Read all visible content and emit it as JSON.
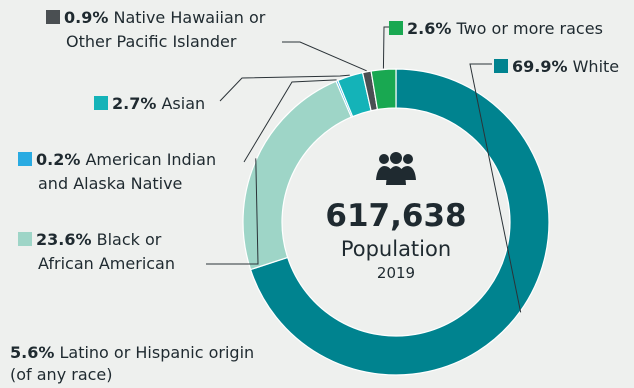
{
  "chart_data": {
    "type": "pie",
    "donut": true,
    "slices": [
      {
        "pct": "69.9%",
        "value": 69.9,
        "name": "White",
        "color": "#00838f"
      },
      {
        "pct": "23.6%",
        "value": 23.6,
        "name": "Black or African American",
        "name_lines": [
          "Black or",
          "African American"
        ],
        "color": "#9ed5c7"
      },
      {
        "pct": "0.2%",
        "value": 0.2,
        "name": "American Indian and Alaska Native",
        "name_lines": [
          "American Indian",
          "and Alaska Native"
        ],
        "color": "#29abe2"
      },
      {
        "pct": "2.7%",
        "value": 2.7,
        "name": "Asian",
        "color": "#14b3b8"
      },
      {
        "pct": "0.9%",
        "value": 0.9,
        "name": "Native Hawaiian or Other Pacific Islander",
        "name_lines": [
          "Native Hawaiian or",
          "Other Pacific Islander"
        ],
        "color": "#4a4f52"
      },
      {
        "pct": "2.6%",
        "value": 2.6,
        "name": "Two or more races",
        "color": "#19a851"
      }
    ],
    "note": {
      "pct": "5.6%",
      "lines": [
        "Latino or Hispanic origin",
        "(of any race)"
      ]
    }
  },
  "center": {
    "value": "617,638",
    "label": "Population",
    "year": "2019",
    "icon": "people-icon"
  }
}
